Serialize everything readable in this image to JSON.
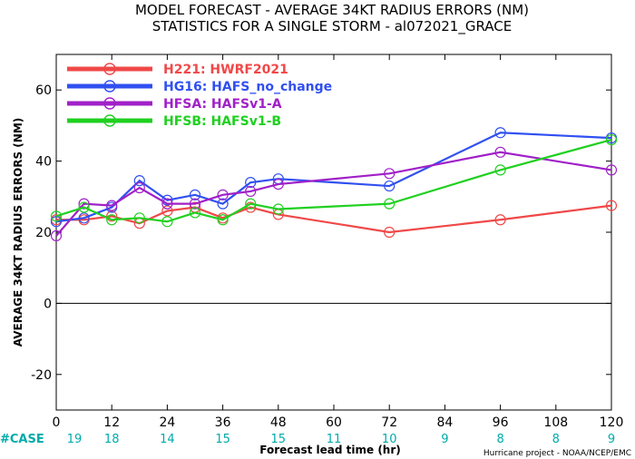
{
  "colors": {
    "case_label": "#00aaaa",
    "case_counts": "#00aaaa",
    "zero_line": "#000000"
  },
  "credit": "Hurricane project - NOAA/NCEP/EMC",
  "case_label": "#CASE",
  "chart_data": {
    "type": "line",
    "title": "MODEL FORECAST - AVERAGE 34KT RADIUS ERRORS (NM)",
    "subtitle": "STATISTICS FOR A SINGLE STORM - al072021_GRACE",
    "xlabel": "Forecast lead time (hr)",
    "ylabel": "AVERAGE 34KT RADIUS ERRORS (NM)",
    "xlim": [
      0,
      120
    ],
    "ylim": [
      -30,
      70
    ],
    "x_ticks": [
      0,
      12,
      24,
      36,
      48,
      60,
      72,
      84,
      96,
      108,
      120
    ],
    "y_ticks": [
      -20,
      0,
      20,
      40,
      60
    ],
    "case_counts": [
      "19",
      "18",
      "14",
      "15",
      "15",
      "11",
      "10",
      "9",
      "8",
      "8",
      "9"
    ],
    "grid": false,
    "legend_position": "top-left",
    "series": [
      {
        "name": "H221: HWRF2021",
        "color": "#f04848",
        "x": [
          0,
          6,
          12,
          18,
          24,
          30,
          36,
          42,
          48,
          72,
          96,
          120
        ],
        "y": [
          23.5,
          23.5,
          24.5,
          22.5,
          26,
          27,
          24,
          27,
          25,
          20,
          23.5,
          27.5
        ]
      },
      {
        "name": "HG16: HAFS_no_change",
        "color": "#3050f0",
        "x": [
          0,
          6,
          12,
          18,
          24,
          30,
          36,
          42,
          48,
          72,
          96,
          120
        ],
        "y": [
          23,
          24,
          27,
          34.5,
          29,
          30.5,
          28,
          34,
          35,
          33,
          48,
          46.5
        ]
      },
      {
        "name": "HFSA: HAFSv1-A",
        "color": "#a020c8",
        "x": [
          0,
          6,
          12,
          18,
          24,
          30,
          36,
          42,
          48,
          72,
          96,
          120
        ],
        "y": [
          19,
          28,
          27.5,
          32.5,
          28,
          28,
          30.5,
          31.5,
          33.5,
          36.5,
          42.5,
          37.5
        ]
      },
      {
        "name": "HFSB: HAFSv1-B",
        "color": "#20d020",
        "x": [
          0,
          6,
          12,
          18,
          24,
          30,
          36,
          42,
          48,
          72,
          96,
          120
        ],
        "y": [
          24.5,
          27,
          23.5,
          24,
          23,
          25.5,
          23.5,
          28,
          26.5,
          28,
          37.5,
          46
        ]
      }
    ]
  }
}
